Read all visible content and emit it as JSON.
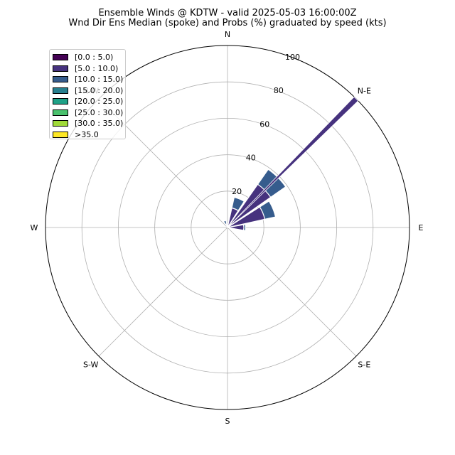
{
  "chart_data": {
    "type": "windrose",
    "title": "Ensemble Winds @ KDTW - valid 2025-05-03 16:00:00Z",
    "subtitle": "Wnd Dir Ens Median (spoke) and Probs (%) graduated by speed (kts)",
    "direction_labels": [
      "N",
      "N-E",
      "E",
      "S-E",
      "S",
      "S-W",
      "W",
      "N-W"
    ],
    "radial_ticks": [
      20,
      40,
      60,
      80,
      100
    ],
    "rlim": [
      0,
      100
    ],
    "grid": true,
    "legend_position": "upper-left",
    "speed_bins": [
      {
        "label": "[0.0 : 5.0)",
        "color": "#440154"
      },
      {
        "label": "[5.0 : 10.0)",
        "color": "#46327e"
      },
      {
        "label": "[10.0 : 15.0)",
        "color": "#365c8d"
      },
      {
        "label": "[15.0 : 20.0)",
        "color": "#277f8e"
      },
      {
        "label": "[20.0 : 25.0)",
        "color": "#1fa187"
      },
      {
        "label": "[25.0 : 30.0)",
        "color": "#4ac16d"
      },
      {
        "label": "[30.0 : 35.0)",
        "color": "#a0da39"
      },
      {
        "label": ">35.0",
        "color": "#fde725"
      }
    ],
    "sectors": [
      {
        "direction_deg": 0,
        "values": [
          1,
          1,
          0,
          0,
          0,
          0,
          0,
          0
        ]
      },
      {
        "direction_deg": 22.5,
        "values": [
          1,
          10,
          6,
          0,
          0,
          0,
          0,
          0
        ]
      },
      {
        "direction_deg": 45,
        "values": [
          1,
          28,
          10,
          0,
          0,
          0,
          0,
          0
        ]
      },
      {
        "direction_deg": 67.5,
        "values": [
          1,
          20,
          6,
          0,
          0,
          0,
          0,
          0
        ]
      },
      {
        "direction_deg": 90,
        "values": [
          1,
          8,
          1,
          0,
          0,
          0,
          0,
          0
        ]
      },
      {
        "direction_deg": 337.5,
        "values": [
          1,
          1,
          2,
          0,
          0,
          0,
          0,
          0
        ]
      }
    ],
    "median_spoke": {
      "direction_deg": 45,
      "value": 100
    }
  }
}
